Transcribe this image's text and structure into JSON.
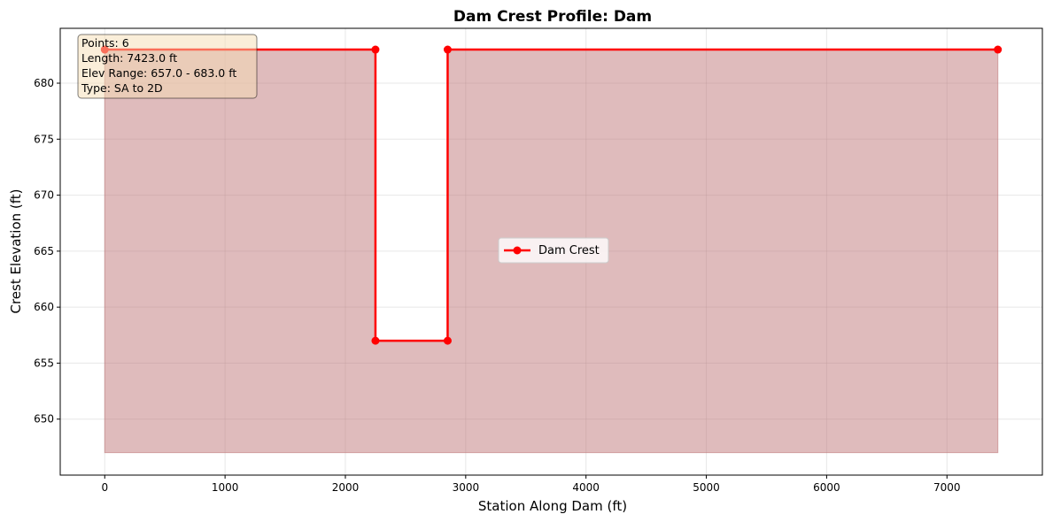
{
  "chart_data": {
    "type": "line",
    "title": "Dam Crest Profile: Dam",
    "xlabel": "Station Along Dam (ft)",
    "ylabel": "Crest Elevation (ft)",
    "xlim": [
      -370,
      7793
    ],
    "ylim": [
      645.0,
      684.9
    ],
    "fill_base": 647.0,
    "xticks": [
      0,
      1000,
      2000,
      3000,
      4000,
      5000,
      6000,
      7000
    ],
    "yticks": [
      650,
      655,
      660,
      665,
      670,
      675,
      680
    ],
    "grid": true,
    "legend_position": "center",
    "series": [
      {
        "name": "Dam Crest",
        "color": "#ff0000",
        "fill_color": "#c0787a",
        "x": [
          0,
          2250,
          2250,
          2850,
          2850,
          7423
        ],
        "y": [
          683.0,
          683.0,
          657.0,
          657.0,
          683.0,
          683.0
        ]
      }
    ],
    "info_box": [
      "Points: 6",
      "Length: 7423.0 ft",
      "Elev Range: 657.0 - 683.0 ft",
      "Type: SA to 2D"
    ]
  }
}
